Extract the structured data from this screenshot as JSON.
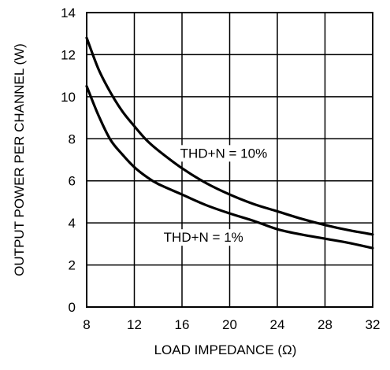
{
  "chart_data": {
    "type": "line",
    "title": "",
    "xlabel": "LOAD IMPEDANCE (Ω)",
    "ylabel": "OUTPUT POWER PER CHANNEL (W)",
    "xlim": [
      8,
      32
    ],
    "ylim": [
      0,
      14
    ],
    "xticks": [
      8,
      12,
      16,
      20,
      24,
      28,
      32
    ],
    "yticks": [
      0,
      2,
      4,
      6,
      8,
      10,
      12,
      14
    ],
    "xtick_labels": [
      "8",
      "12",
      "16",
      "20",
      "24",
      "28",
      "32"
    ],
    "ytick_labels": [
      "0",
      "2",
      "4",
      "6",
      "8",
      "10",
      "12",
      "14"
    ],
    "grid": true,
    "legend": "none",
    "colors": {
      "line": "#000000",
      "grid": "#000000",
      "background": "#ffffff"
    },
    "series": [
      {
        "x": [
          8,
          9,
          10,
          11,
          12,
          13,
          14,
          16,
          18,
          20,
          22,
          24,
          26,
          28,
          30,
          32
        ],
        "y": [
          12.8,
          11.3,
          10.2,
          9.3,
          8.6,
          7.95,
          7.45,
          6.6,
          5.9,
          5.35,
          4.9,
          4.55,
          4.2,
          3.9,
          3.65,
          3.45
        ]
      },
      {
        "x": [
          8,
          9,
          10,
          11,
          12,
          13,
          14,
          16,
          18,
          20,
          22,
          24,
          26,
          28,
          30,
          32
        ],
        "y": [
          10.5,
          9.1,
          7.95,
          7.25,
          6.65,
          6.2,
          5.85,
          5.35,
          4.85,
          4.45,
          4.1,
          3.7,
          3.45,
          3.25,
          3.05,
          2.8
        ]
      }
    ],
    "annotations": [
      {
        "text": "THD+N = 10%",
        "x": 19.5,
        "y": 7.1
      },
      {
        "text": "THD+N = 1%",
        "x": 17.8,
        "y": 3.1
      }
    ]
  }
}
